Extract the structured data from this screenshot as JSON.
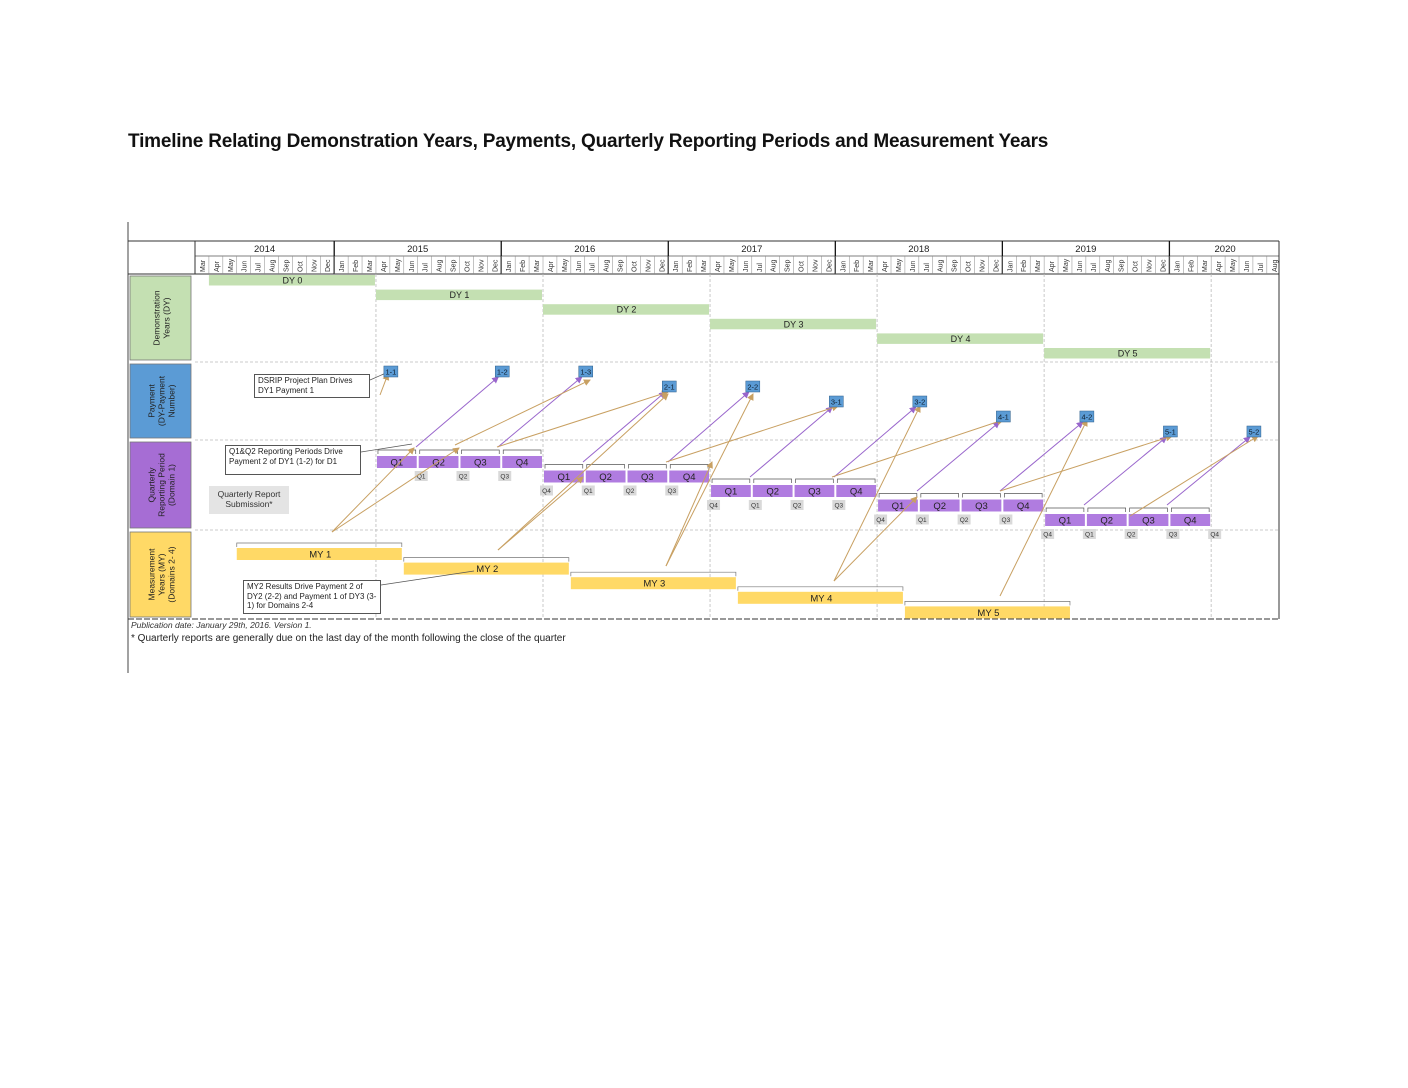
{
  "title": "Timeline Relating Demonstration Years, Payments, Quarterly Reporting Periods and Measurement Years",
  "footnote_publication": "Publication date: January 29th, 2016. Version 1.",
  "footnote_quarterly": "* Quarterly reports are generally due on the last day of the month following the close of the quarter",
  "years": [
    {
      "label": "2014",
      "start": 0,
      "end": 10
    },
    {
      "label": "2015",
      "start": 10,
      "end": 22
    },
    {
      "label": "2016",
      "start": 22,
      "end": 34
    },
    {
      "label": "2017",
      "start": 34,
      "end": 46
    },
    {
      "label": "2018",
      "start": 46,
      "end": 58
    },
    {
      "label": "2019",
      "start": 58,
      "end": 70
    },
    {
      "label": "2020",
      "start": 70,
      "end": 78
    }
  ],
  "months": [
    "Mar",
    "Apr",
    "May",
    "Jun",
    "Jul",
    "Aug",
    "Sep",
    "Oct",
    "Nov",
    "Dec",
    "Jan",
    "Feb",
    "Mar",
    "Apr",
    "May",
    "Jun",
    "Jul",
    "Aug",
    "Sep",
    "Oct",
    "Nov",
    "Dec",
    "Jan",
    "Feb",
    "Mar",
    "Apr",
    "May",
    "Jun",
    "Jul",
    "Aug",
    "Sep",
    "Oct",
    "Nov",
    "Dec",
    "Jan",
    "Feb",
    "Mar",
    "Apr",
    "May",
    "Jun",
    "Jul",
    "Aug",
    "Sep",
    "Oct",
    "Nov",
    "Dec",
    "Jan",
    "Feb",
    "Mar",
    "Apr",
    "May",
    "Jun",
    "Jul",
    "Aug",
    "Sep",
    "Oct",
    "Nov",
    "Dec",
    "Jan",
    "Feb",
    "Mar",
    "Apr",
    "May",
    "Jun",
    "Jul",
    "Aug",
    "Sep",
    "Oct",
    "Nov",
    "Dec",
    "Jan",
    "Feb",
    "Mar",
    "Apr",
    "May",
    "Jun",
    "Jul",
    "Aug"
  ],
  "lanes": [
    {
      "id": "dy",
      "label": "Demonstration Years (DY)",
      "color": "#c4e0b2"
    },
    {
      "id": "pay",
      "label": "Payment (DY-Payment Number)",
      "color": "#5b9bd5"
    },
    {
      "id": "qrp",
      "label": "Quarterly Reporting Period (Domain 1)",
      "color": "#a66dd4"
    },
    {
      "id": "my",
      "label": "Measurement Years (MY) (Domains 2- 4)",
      "color": "#ffd966"
    }
  ],
  "demonstration_years": [
    {
      "label": "DY 0",
      "start": 1,
      "end": 13
    },
    {
      "label": "DY 1",
      "start": 13,
      "end": 25
    },
    {
      "label": "DY 2",
      "start": 25,
      "end": 37
    },
    {
      "label": "DY 3",
      "start": 37,
      "end": 49
    },
    {
      "label": "DY 4",
      "start": 49,
      "end": 61
    },
    {
      "label": "DY 5",
      "start": 61,
      "end": 73
    }
  ],
  "payments": [
    {
      "label": "1-1",
      "month": 14
    },
    {
      "label": "1-2",
      "month": 22
    },
    {
      "label": "1-3",
      "month": 28
    },
    {
      "label": "2-1",
      "month": 34
    },
    {
      "label": "2-2",
      "month": 40
    },
    {
      "label": "3-1",
      "month": 46
    },
    {
      "label": "3-2",
      "month": 52
    },
    {
      "label": "4-1",
      "month": 58
    },
    {
      "label": "4-2",
      "month": 64
    },
    {
      "label": "5-1",
      "month": 70
    },
    {
      "label": "5-2",
      "month": 76
    }
  ],
  "reporting_years": [
    {
      "start": 13,
      "quarters": [
        "Q1",
        "Q2",
        "Q3",
        "Q4"
      ],
      "submissions": [
        "Q1",
        "Q2",
        "Q3"
      ]
    },
    {
      "start": 25,
      "quarters": [
        "Q1",
        "Q2",
        "Q3",
        "Q4"
      ],
      "submissions": [
        "Q4",
        "Q1",
        "Q2",
        "Q3"
      ]
    },
    {
      "start": 37,
      "quarters": [
        "Q1",
        "Q2",
        "Q3",
        "Q4"
      ],
      "submissions": [
        "Q4",
        "Q1",
        "Q2",
        "Q3"
      ]
    },
    {
      "start": 49,
      "quarters": [
        "Q1",
        "Q2",
        "Q3",
        "Q4"
      ],
      "submissions": [
        "Q4",
        "Q1",
        "Q2",
        "Q3"
      ]
    },
    {
      "start": 61,
      "quarters": [
        "Q1",
        "Q2",
        "Q3",
        "Q4"
      ],
      "submissions": [
        "Q4",
        "Q1",
        "Q2",
        "Q3",
        "Q4"
      ]
    }
  ],
  "measurement_years": [
    {
      "label": "MY 1",
      "start": 3,
      "end": 15
    },
    {
      "label": "MY 2",
      "start": 15,
      "end": 27
    },
    {
      "label": "MY 3",
      "start": 27,
      "end": 39
    },
    {
      "label": "MY 4",
      "start": 39,
      "end": 51
    },
    {
      "label": "MY 5",
      "start": 51,
      "end": 63
    }
  ],
  "callouts": {
    "dsrip": "DSRIP Project Plan Drives DY1 Payment 1",
    "q1q2": "Q1&Q2 Reporting Periods Drive Payment 2 of DY1 (1-2) for D1",
    "my2": "MY2 Results Drive Payment 2 of DY2 (2-2) and Payment 1 of DY3 (3-1) for Domains 2-4",
    "submission": "Quarterly Report Submission*"
  },
  "colors": {
    "dy_bar": "#c4e0b2",
    "payment_box": "#5b9bd5",
    "quarter_bar": "#b07ce0",
    "submission_box": "#d9d9d9",
    "my_bar": "#ffd966",
    "purple_arrow": "#9966cc",
    "tan_arrow": "#c8a062"
  }
}
